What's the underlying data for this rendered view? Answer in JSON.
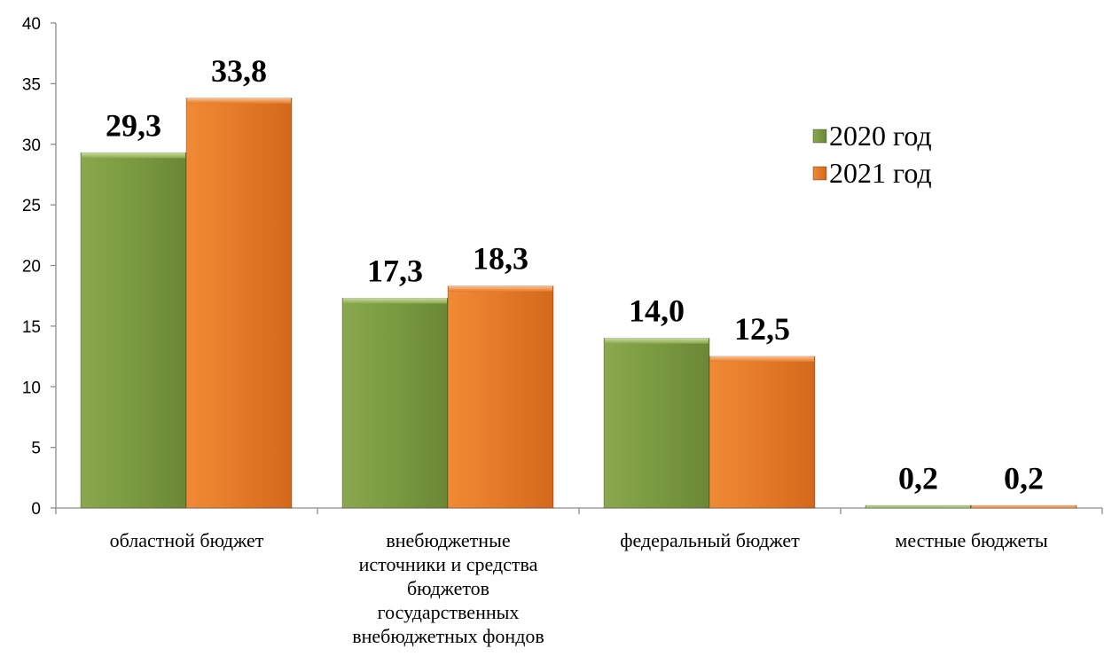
{
  "chart_data": {
    "type": "bar",
    "categories": [
      [
        "областной бюджет"
      ],
      [
        "внебюджетные",
        "источники и средства",
        "бюджетов",
        "государственных",
        "внебюджетных фондов"
      ],
      [
        "федеральный бюджет"
      ],
      [
        "местные бюджеты"
      ]
    ],
    "series": [
      {
        "name": "2020 год",
        "values": [
          29.3,
          17.3,
          14.0,
          0.2
        ],
        "labels": [
          "29,3",
          "17,3",
          "14,0",
          "0,2"
        ],
        "color": "#77933c"
      },
      {
        "name": "2021 год",
        "values": [
          33.8,
          18.3,
          12.5,
          0.2
        ],
        "labels": [
          "33,8",
          "18,3",
          "12,5",
          "0,2"
        ],
        "color": "#e46c0a"
      }
    ],
    "yticks": [
      0,
      5,
      10,
      15,
      20,
      25,
      30,
      35,
      40
    ],
    "ylim": [
      0,
      40
    ],
    "legend_position": "right",
    "grid": false
  }
}
